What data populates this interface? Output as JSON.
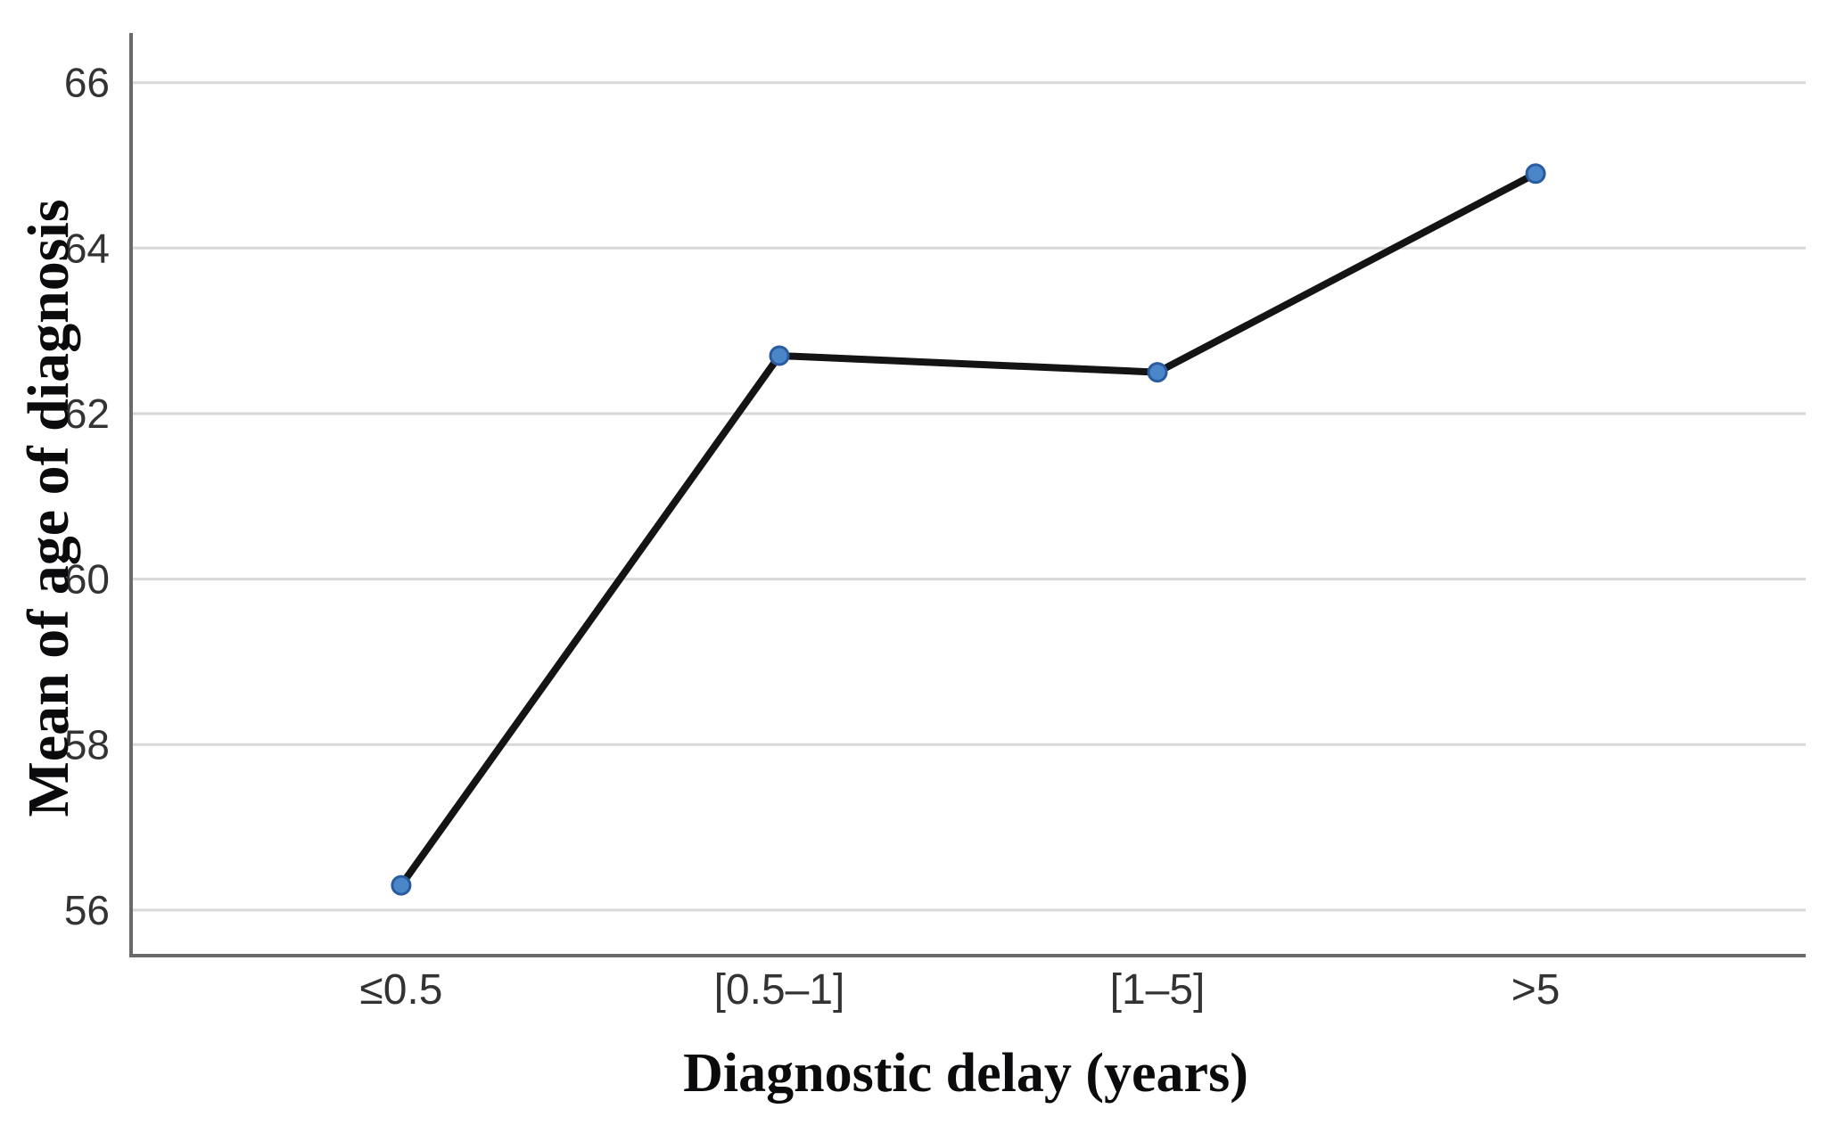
{
  "figure": {
    "background_color": "#ffffff"
  },
  "chart_data": {
    "type": "line",
    "title": "",
    "xlabel": "Diagnostic delay (years)",
    "ylabel": "Mean of age of diagnosis",
    "categories": [
      "≤0.5",
      "[0.5–1]",
      "[1–5]",
      ">5"
    ],
    "series": [
      {
        "name": "Mean of age of diagnosis",
        "values": [
          56.3,
          62.7,
          62.5,
          64.9
        ]
      }
    ],
    "yticks": [
      56,
      58,
      60,
      62,
      64,
      66
    ],
    "ylim": [
      55.45,
      66.6
    ],
    "grid": "horizontal",
    "legend_position": "none",
    "colors": {
      "line": "#141414",
      "marker_fill": "#4a86c8",
      "marker_stroke": "#2a5a9f",
      "gridline": "#d8d8d8",
      "axis_line": "#6a6a6a",
      "tick_label": "#333333",
      "axis_title": "#0b0b0d"
    }
  }
}
